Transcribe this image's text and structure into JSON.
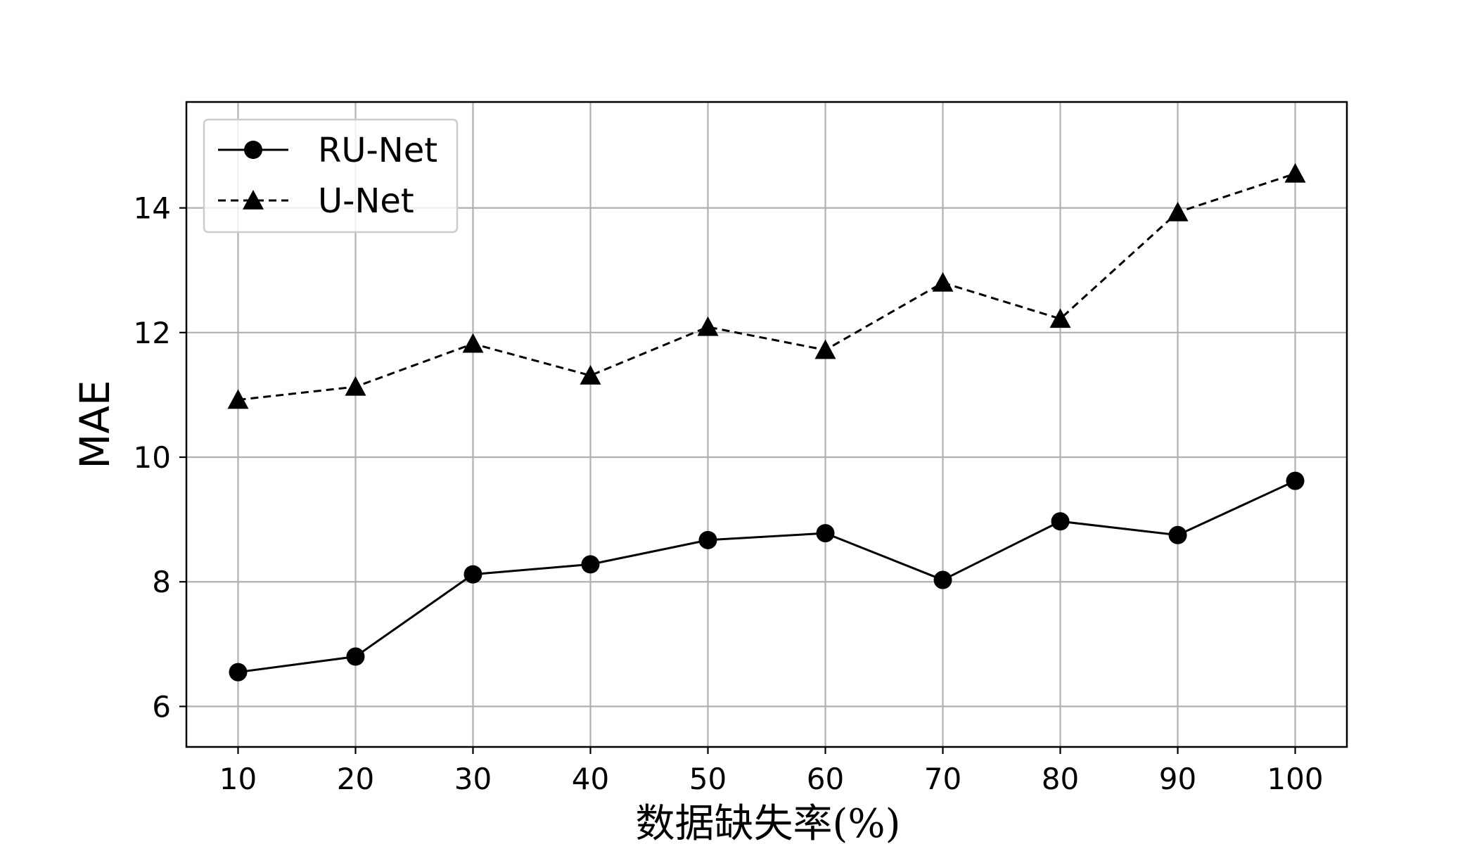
{
  "chart_data": {
    "type": "line",
    "title": "",
    "xlabel": "数据缺失率(%)",
    "ylabel": "MAE",
    "x": [
      10,
      20,
      30,
      40,
      50,
      60,
      70,
      80,
      90,
      100
    ],
    "xlim": [
      5.6,
      104.4
    ],
    "ylim": [
      5.35,
      15.7
    ],
    "xticks": [
      "10",
      "20",
      "30",
      "40",
      "50",
      "60",
      "70",
      "80",
      "90",
      "100"
    ],
    "yticks": [
      "6",
      "8",
      "10",
      "12",
      "14"
    ],
    "grid": true,
    "legend_position": "top-left",
    "series": [
      {
        "name": "RU-Net",
        "line_style": "solid",
        "marker": "circle",
        "color": "#000000",
        "values": [
          6.55,
          6.8,
          8.12,
          8.28,
          8.67,
          8.78,
          8.03,
          8.97,
          8.75,
          9.62
        ]
      },
      {
        "name": "U-Net",
        "line_style": "dashed",
        "marker": "triangle",
        "color": "#000000",
        "values": [
          10.92,
          11.13,
          11.82,
          11.31,
          12.09,
          11.72,
          12.8,
          12.22,
          13.93,
          14.55
        ]
      }
    ]
  }
}
